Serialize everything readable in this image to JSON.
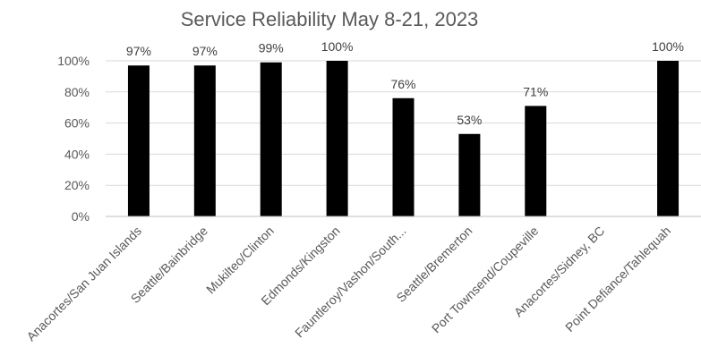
{
  "chart_data": {
    "type": "bar",
    "title": "Service Reliability May 8-21, 2023",
    "xlabel": "",
    "ylabel": "",
    "categories": [
      "Anacortes/San Juan Islands",
      "Seattle/Bainbridge",
      "Mukilteo/Clinton",
      "Edmonds/Kingston",
      "Fauntleroy/Vashon/South...",
      "Seattle/Bremerton",
      "Port Townsend/Coupeville",
      "Anacortes/Sidney, BC",
      "Point Defiance/Tahlequah"
    ],
    "values": [
      97,
      97,
      99,
      100,
      76,
      53,
      71,
      null,
      100
    ],
    "data_labels": [
      "97%",
      "97%",
      "99%",
      "100%",
      "76%",
      "53%",
      "71%",
      "",
      "100%"
    ],
    "yticks": [
      "0%",
      "20%",
      "40%",
      "60%",
      "80%",
      "100%"
    ],
    "ylim": [
      0,
      100
    ],
    "grid": true,
    "legend": "none",
    "bar_color": "#000000"
  }
}
